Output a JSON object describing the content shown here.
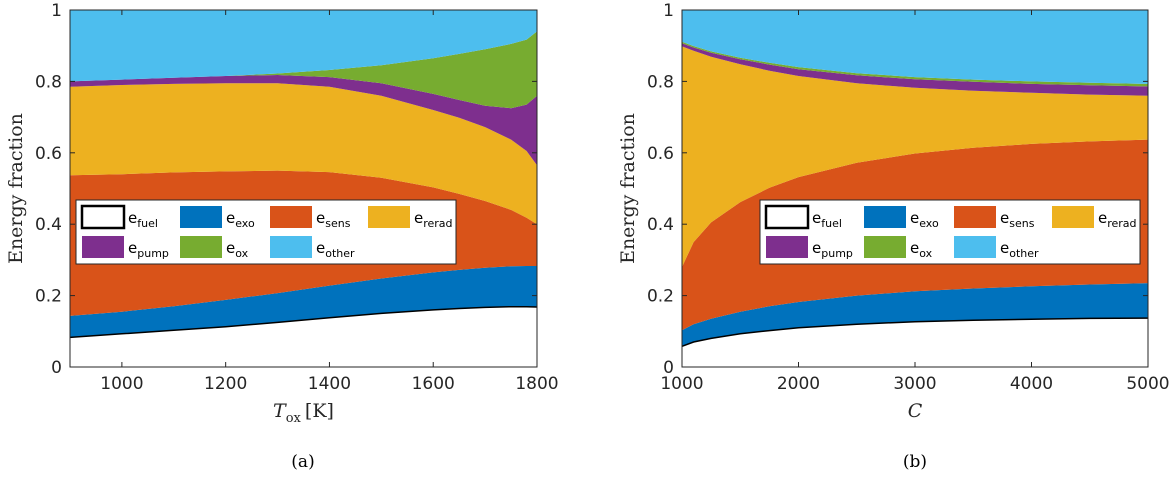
{
  "chart_data": [
    {
      "type": "area",
      "caption": "(a)",
      "xlabel": "T_ox [K]",
      "xlabel_main": "T",
      "xlabel_sub": "ox",
      "xlabel_unit": "[K]",
      "ylabel": "Energy fraction",
      "xlim": [
        900,
        1800
      ],
      "ylim": [
        0,
        1
      ],
      "xticks": [
        "1000",
        "1200",
        "1400",
        "1600",
        "1800"
      ],
      "xtick_values": [
        1000,
        1200,
        1400,
        1600,
        1800
      ],
      "yticks": [
        "0",
        "0.2",
        "0.4",
        "0.6",
        "0.8",
        "1"
      ],
      "ytick_values": [
        0,
        0.2,
        0.4,
        0.6,
        0.8,
        1
      ],
      "legend_position": "center-left",
      "x": [
        900,
        1000,
        1100,
        1200,
        1300,
        1400,
        1500,
        1600,
        1650,
        1700,
        1750,
        1780,
        1800
      ],
      "series": [
        {
          "name": "fuel",
          "label_main": "e",
          "label_sub": "fuel",
          "color": "#ffffff",
          "edge": "#000000",
          "cumulative": [
            0.083,
            0.093,
            0.103,
            0.113,
            0.125,
            0.138,
            0.15,
            0.16,
            0.164,
            0.167,
            0.169,
            0.169,
            0.168
          ]
        },
        {
          "name": "exo",
          "label_main": "e",
          "label_sub": "exo",
          "color": "#0072bd",
          "cumulative": [
            0.143,
            0.155,
            0.17,
            0.188,
            0.207,
            0.228,
            0.248,
            0.265,
            0.272,
            0.278,
            0.282,
            0.283,
            0.283
          ]
        },
        {
          "name": "sens",
          "label_main": "e",
          "label_sub": "sens",
          "color": "#d95319",
          "cumulative": [
            0.537,
            0.54,
            0.545,
            0.548,
            0.55,
            0.546,
            0.53,
            0.503,
            0.485,
            0.465,
            0.44,
            0.418,
            0.4
          ]
        },
        {
          "name": "rerad",
          "label_main": "e",
          "label_sub": "rerad",
          "color": "#edb120",
          "cumulative": [
            0.785,
            0.79,
            0.793,
            0.795,
            0.795,
            0.785,
            0.76,
            0.72,
            0.698,
            0.672,
            0.637,
            0.605,
            0.565
          ]
        },
        {
          "name": "pump",
          "label_main": "e",
          "label_sub": "pump",
          "color": "#7e2f8e",
          "cumulative": [
            0.8,
            0.805,
            0.81,
            0.815,
            0.818,
            0.812,
            0.795,
            0.765,
            0.748,
            0.732,
            0.725,
            0.735,
            0.76
          ]
        },
        {
          "name": "ox",
          "label_main": "e",
          "label_sub": "ox",
          "color": "#77ac30",
          "cumulative": [
            0.8,
            0.805,
            0.81,
            0.815,
            0.822,
            0.832,
            0.845,
            0.865,
            0.877,
            0.89,
            0.905,
            0.917,
            0.94
          ]
        },
        {
          "name": "other",
          "label_main": "e",
          "label_sub": "other",
          "color": "#4dbeee",
          "cumulative": [
            1,
            1,
            1,
            1,
            1,
            1,
            1,
            1,
            1,
            1,
            1,
            1,
            1
          ]
        }
      ]
    },
    {
      "type": "area",
      "caption": "(b)",
      "xlabel": "C",
      "xlabel_main": "C",
      "xlabel_sub": "",
      "xlabel_unit": "",
      "ylabel": "Energy fraction",
      "xlim": [
        1000,
        5000
      ],
      "ylim": [
        0,
        1
      ],
      "xticks": [
        "1000",
        "2000",
        "3000",
        "4000",
        "5000"
      ],
      "xtick_values": [
        1000,
        2000,
        3000,
        4000,
        5000
      ],
      "yticks": [
        "0",
        "0.2",
        "0.4",
        "0.6",
        "0.8",
        "1"
      ],
      "ytick_values": [
        0,
        0.2,
        0.4,
        0.6,
        0.8,
        1
      ],
      "legend_position": "center",
      "x": [
        1000,
        1100,
        1250,
        1500,
        1750,
        2000,
        2500,
        3000,
        3500,
        4000,
        4500,
        5000
      ],
      "series": [
        {
          "name": "fuel",
          "label_main": "e",
          "label_sub": "fuel",
          "color": "#ffffff",
          "edge": "#000000",
          "cumulative": [
            0.058,
            0.07,
            0.08,
            0.093,
            0.102,
            0.11,
            0.12,
            0.127,
            0.131,
            0.134,
            0.136,
            0.137
          ]
        },
        {
          "name": "exo",
          "label_main": "e",
          "label_sub": "exo",
          "color": "#0072bd",
          "cumulative": [
            0.103,
            0.12,
            0.135,
            0.155,
            0.17,
            0.182,
            0.2,
            0.212,
            0.22,
            0.226,
            0.231,
            0.235
          ]
        },
        {
          "name": "sens",
          "label_main": "e",
          "label_sub": "sens",
          "color": "#d95319",
          "cumulative": [
            0.28,
            0.35,
            0.405,
            0.462,
            0.502,
            0.532,
            0.572,
            0.598,
            0.614,
            0.625,
            0.632,
            0.637
          ]
        },
        {
          "name": "rerad",
          "label_main": "e",
          "label_sub": "rerad",
          "color": "#edb120",
          "cumulative": [
            0.898,
            0.886,
            0.869,
            0.848,
            0.83,
            0.815,
            0.795,
            0.782,
            0.774,
            0.768,
            0.763,
            0.76
          ]
        },
        {
          "name": "pump",
          "label_main": "e",
          "label_sub": "pump",
          "color": "#7e2f8e",
          "cumulative": [
            0.907,
            0.895,
            0.88,
            0.862,
            0.847,
            0.834,
            0.817,
            0.806,
            0.799,
            0.793,
            0.789,
            0.786
          ]
        },
        {
          "name": "ox",
          "label_main": "e",
          "label_sub": "ox",
          "color": "#77ac30",
          "cumulative": [
            0.911,
            0.899,
            0.884,
            0.866,
            0.852,
            0.84,
            0.823,
            0.812,
            0.805,
            0.8,
            0.796,
            0.793
          ]
        },
        {
          "name": "other",
          "label_main": "e",
          "label_sub": "other",
          "color": "#4dbeee",
          "cumulative": [
            1,
            1,
            1,
            1,
            1,
            1,
            1,
            1,
            1,
            1,
            1,
            1
          ]
        }
      ]
    }
  ]
}
